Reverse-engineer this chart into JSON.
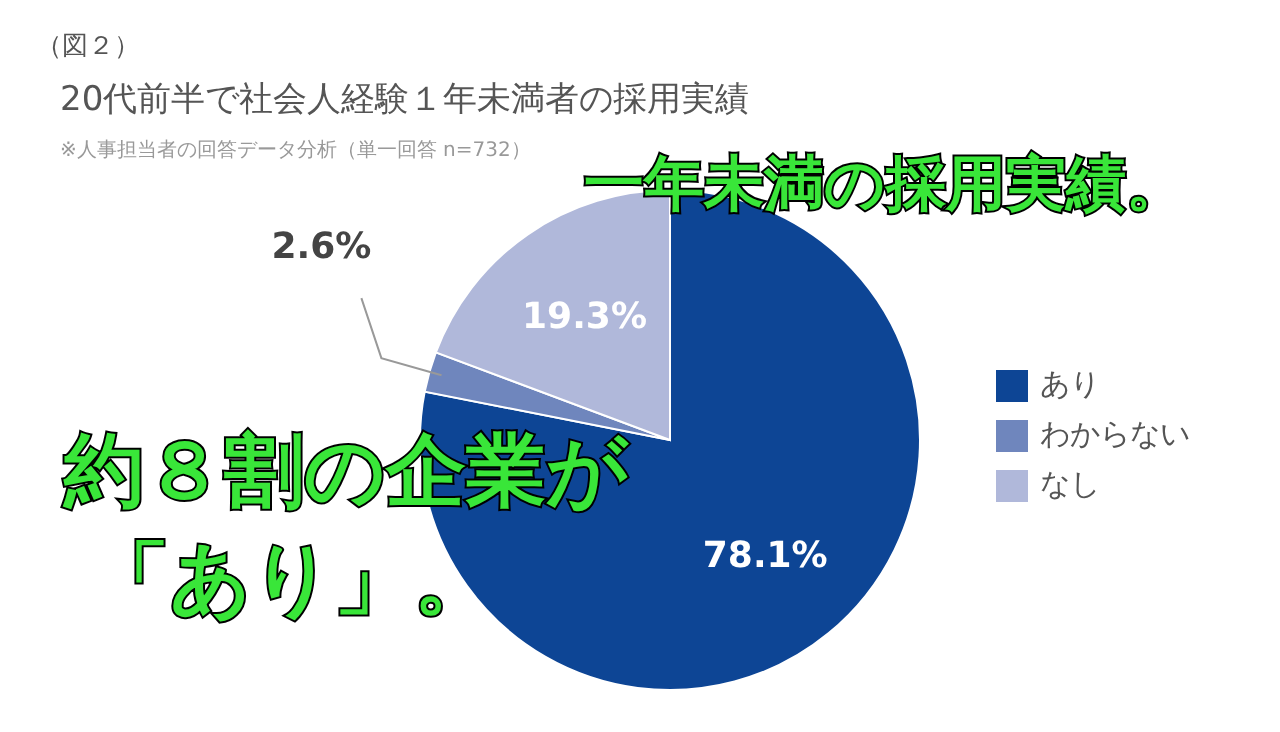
{
  "chart_data": {
    "type": "pie",
    "title": "20代前半で社会人経験１年未満者の採用実績",
    "subtitle": "※人事担当者の回答データ分析（単一回答 n=732）",
    "annotations": [
      "（図２）",
      "一年未満の採用実績。",
      "約８割の企業が",
      "「あり」。"
    ],
    "categories": [
      "あり",
      "わからない",
      "なし"
    ],
    "values": [
      78.1,
      2.6,
      19.3
    ],
    "colors": [
      "#0d4595",
      "#6f86bd",
      "#b0b8da"
    ],
    "value_labels": [
      "78.1%",
      "2.6%",
      "19.3%"
    ],
    "legend": "right"
  }
}
